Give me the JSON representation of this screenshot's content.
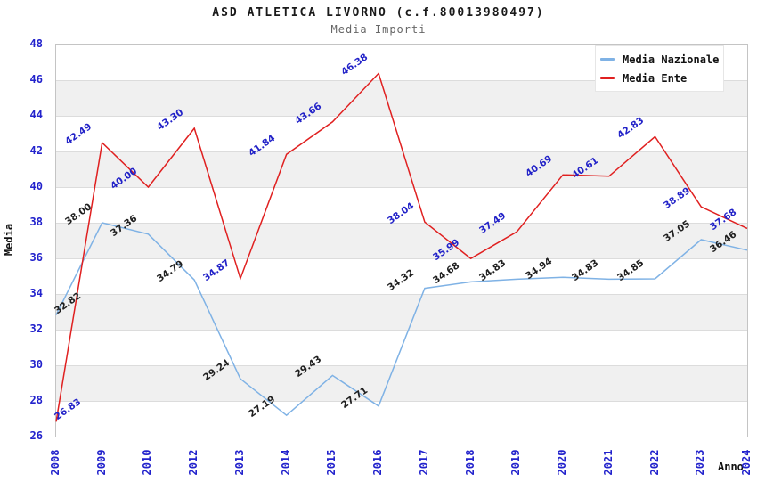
{
  "header": {
    "title": "ASD ATLETICA LIVORNO (c.f.80013980497)",
    "subtitle": "Media Importi"
  },
  "chart_data": {
    "type": "line",
    "title": "ASD ATLETICA LIVORNO (c.f.80013980497)",
    "subtitle": "Media Importi",
    "xlabel": "Anno",
    "ylabel": "Media",
    "ylim": [
      26,
      48
    ],
    "ytick_step": 2,
    "grid": "horizontal-bands-alternating",
    "legend_position": "top-right",
    "categories": [
      "2008",
      "2009",
      "2010",
      "2012",
      "2013",
      "2014",
      "2015",
      "2016",
      "2017",
      "2018",
      "2019",
      "2020",
      "2021",
      "2022",
      "2023",
      "2024"
    ],
    "series": [
      {
        "name": "Media Nazionale",
        "color": "#7fb2e5",
        "label_color": "#1f1f1f",
        "values": [
          32.82,
          38.0,
          37.36,
          34.79,
          29.24,
          27.19,
          29.43,
          27.71,
          34.32,
          34.68,
          34.83,
          34.94,
          34.83,
          34.85,
          37.05,
          36.46
        ]
      },
      {
        "name": "Media Ente",
        "color": "#e02020",
        "label_color": "#2222c8",
        "values": [
          26.83,
          42.49,
          40.0,
          43.3,
          34.87,
          41.84,
          43.66,
          46.38,
          38.04,
          35.99,
          37.49,
          40.69,
          40.61,
          42.83,
          38.89,
          37.68
        ]
      }
    ]
  },
  "colors": {
    "tick_label": "#2222cc",
    "band_gray": "#f0f0f0",
    "plot_border": "#c4c4c4",
    "title_text": "#1a1a1a",
    "subtitle_text": "#666666"
  }
}
